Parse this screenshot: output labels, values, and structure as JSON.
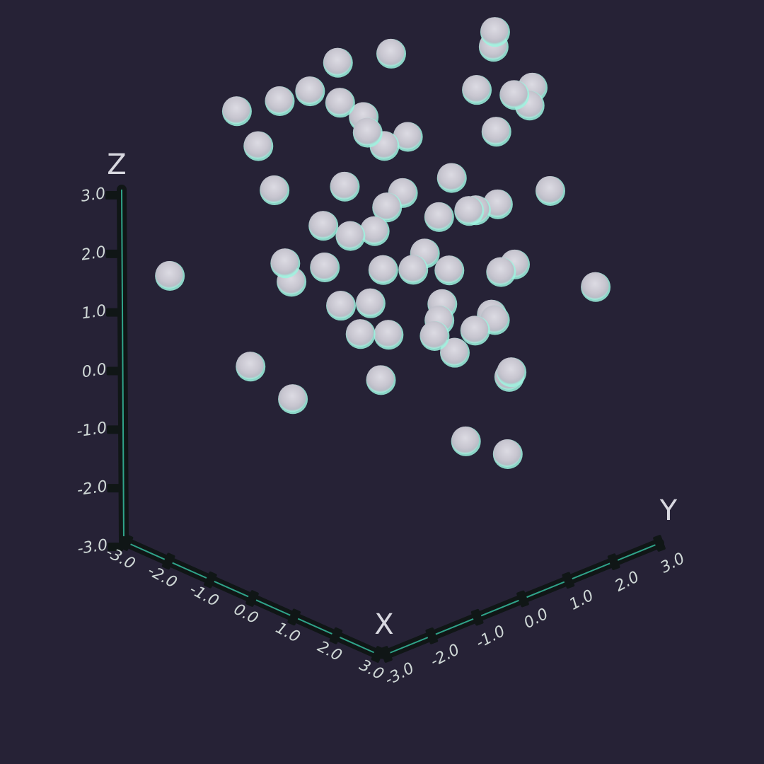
{
  "chart_data": {
    "type": "scatter",
    "dimensions": 3,
    "marker": "sphere",
    "colors": {
      "background": "#262236",
      "marker": "#c9c8d2",
      "marker_glow": "#9ef3df",
      "axis": "#101616",
      "axis_highlight": "#2fa48a",
      "tick_label": "#cfd8d6",
      "axis_title": "#d8d8e0"
    },
    "axes": {
      "x": {
        "label": "X",
        "range": [
          -3,
          3
        ],
        "ticks": [
          "-3.0",
          "-2.0",
          "-1.0",
          "0.0",
          "1.0",
          "2.0",
          "3.0"
        ]
      },
      "y": {
        "label": "Y",
        "range": [
          -3,
          3
        ],
        "ticks": [
          "-3.0",
          "-2.0",
          "-1.0",
          "0.0",
          "1.0",
          "2.0",
          "3.0"
        ]
      },
      "z": {
        "label": "Z",
        "range": [
          -3,
          3
        ],
        "ticks": [
          "-3.0",
          "-2.0",
          "-1.0",
          "0.0",
          "1.0",
          "2.0",
          "3.0"
        ]
      }
    },
    "points": [
      [
        -0.8,
        -0.3,
        3.2
      ],
      [
        -1.6,
        1.6,
        2.5
      ],
      [
        -0.2,
        2.6,
        3.0
      ],
      [
        0.2,
        2.2,
        3.0
      ],
      [
        0.8,
        2.1,
        2.4
      ],
      [
        -0.1,
        2.1,
        2.2
      ],
      [
        0.8,
        2.5,
        2.4
      ],
      [
        1.6,
        1.7,
        2.6
      ],
      [
        -2.9,
        -0.6,
        1.8
      ],
      [
        -2.2,
        -0.3,
        2.1
      ],
      [
        -1.8,
        0.0,
        2.3
      ],
      [
        -1.3,
        0.2,
        2.2
      ],
      [
        -0.3,
        -0.2,
        2.4
      ],
      [
        0.1,
        0.4,
        2.0
      ],
      [
        -1.3,
        0.8,
        1.5
      ],
      [
        0.8,
        1.7,
        1.9
      ],
      [
        -2.5,
        -0.5,
        1.3
      ],
      [
        0.3,
        0.1,
        1.2
      ],
      [
        1.7,
        0.9,
        1.2
      ],
      [
        1.1,
        2.6,
        0.7
      ],
      [
        -1.9,
        -0.7,
        0.8
      ],
      [
        -1.2,
        0.2,
        0.8
      ],
      [
        -0.3,
        0.3,
        0.7
      ],
      [
        0.4,
        0.8,
        0.6
      ],
      [
        0.9,
        1.0,
        0.8
      ],
      [
        -1.5,
        0.0,
        0.1
      ],
      [
        -0.6,
        0.3,
        0.2
      ],
      [
        0.6,
        0.3,
        0.2
      ],
      [
        1.0,
        1.6,
        -0.4
      ],
      [
        2.1,
        0.9,
        0.3
      ],
      [
        2.5,
        2.3,
        -0.4
      ],
      [
        -1.4,
        0.5,
        -0.2
      ],
      [
        0.1,
        0.5,
        -0.3
      ],
      [
        0.2,
        1.2,
        -0.5
      ],
      [
        0.9,
        0.4,
        -0.6
      ],
      [
        -3.0,
        -2.0,
        -0.6
      ],
      [
        -2.2,
        -0.2,
        -0.7
      ],
      [
        -1.8,
        0.3,
        -0.8
      ],
      [
        -0.6,
        0.2,
        -1.0
      ],
      [
        0.5,
        0.7,
        -1.1
      ],
      [
        1.1,
        1.3,
        -1.0
      ],
      [
        -2.6,
        0.3,
        -1.3
      ],
      [
        -1.2,
        0.1,
        -1.2
      ],
      [
        -0.5,
        0.5,
        -1.6
      ],
      [
        0.7,
        1.3,
        -1.4
      ],
      [
        -1.5,
        0.8,
        -2.0
      ],
      [
        0.1,
        1.4,
        -2.0
      ],
      [
        1.4,
        1.4,
        -2.0
      ],
      [
        -2.5,
        -0.7,
        -2.4
      ],
      [
        -0.8,
        0.6,
        -2.5
      ],
      [
        0.8,
        2.0,
        -2.3
      ],
      [
        -1.6,
        -0.6,
        -2.7
      ],
      [
        0.9,
        0.9,
        -3.1
      ],
      [
        1.9,
        0.9,
        -3.0
      ],
      [
        -0.6,
        1.6,
        -2.0
      ],
      [
        0.3,
        2.1,
        -1.6
      ],
      [
        -0.9,
        0.8,
        1.4
      ],
      [
        0.6,
        0.9,
        1.3
      ],
      [
        -0.4,
        0.3,
        -0.4
      ],
      [
        0.3,
        1.7,
        0.4
      ]
    ]
  }
}
